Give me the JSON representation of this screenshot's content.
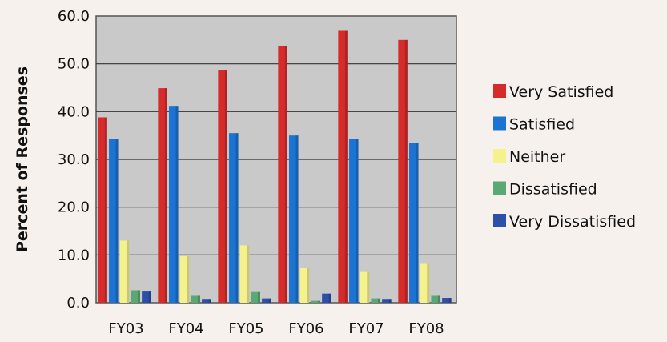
{
  "chart_data": {
    "type": "bar",
    "categories": [
      "FY03",
      "FY04",
      "FY05",
      "FY06",
      "FY07",
      "FY08"
    ],
    "series": [
      {
        "name": "Very Satisfied",
        "color": "#d62b2b",
        "values": [
          38.8,
          44.9,
          48.6,
          53.8,
          56.9,
          55.0
        ]
      },
      {
        "name": "Satisfied",
        "color": "#1c74d2",
        "values": [
          34.2,
          41.2,
          35.5,
          35.0,
          34.2,
          33.4
        ]
      },
      {
        "name": "Neither",
        "color": "#f5f28e",
        "values": [
          13.0,
          9.7,
          12.0,
          7.3,
          6.6,
          8.3
        ]
      },
      {
        "name": "Dissatisfied",
        "color": "#5aa873",
        "values": [
          2.6,
          1.6,
          2.4,
          0.4,
          0.9,
          1.6
        ]
      },
      {
        "name": "Very Dissatisfied",
        "color": "#2c4fa8",
        "values": [
          2.5,
          0.8,
          0.9,
          1.9,
          0.8,
          1.0
        ]
      }
    ],
    "ylabel": "Percent of Responses",
    "xlabel": "",
    "ylim": [
      0,
      60
    ],
    "yticks": [
      "0.0",
      "10.0",
      "20.0",
      "30.0",
      "40.0",
      "50.0",
      "60.0"
    ],
    "grid": true,
    "plot_background": "#c9c9c9",
    "legend_position": "right"
  }
}
